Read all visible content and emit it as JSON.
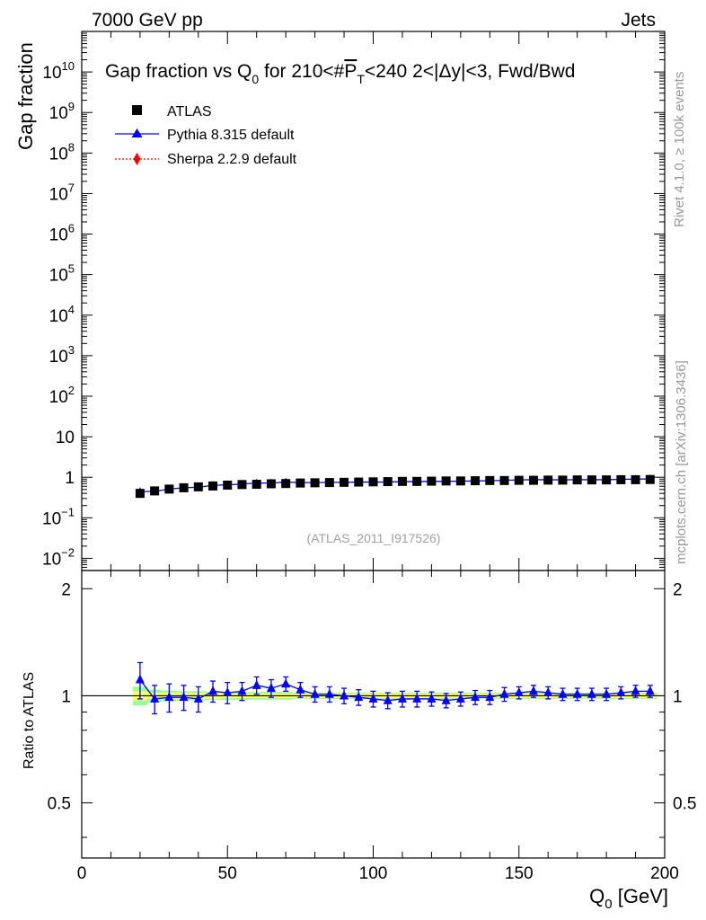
{
  "header": {
    "energy_label": "7000 GeV pp",
    "category_label": "Jets"
  },
  "side_text": {
    "rivet": "Rivet 4.1.0, ≥ 100k events",
    "source": "mcplots.cern.ch [arXiv:1306.3436]"
  },
  "colors": {
    "data": "#000000",
    "pythia": "#0000ff",
    "sherpa": "#ff0000",
    "band_inner": "#ffff66",
    "band_outer": "#99ff99"
  },
  "chart_data": [
    {
      "type": "scatter",
      "panel": "main",
      "title": "Gap fraction vs Q0 for 210<#PT<240  2<|Δy|<3, Fwd/Bwd",
      "title_parts": {
        "prefix": "Gap fraction vs Q",
        "sub": "0",
        "mid": " for 210<#",
        "overline": "P",
        "overline_sub": "T",
        "suffix": "<240  2<|Δy|<3, Fwd/Bwd"
      },
      "ylabel": "Gap fraction",
      "yscale": "log",
      "ylim": [
        0.005,
        100000000000.0
      ],
      "xlim": [
        0,
        200
      ],
      "analysis_label": "(ATLAS_2011_I917526)",
      "y_ticks": [
        {
          "value": 0.01,
          "base": "10",
          "exp": "−2"
        },
        {
          "value": 0.1,
          "base": "10",
          "exp": "−1"
        },
        {
          "value": 1,
          "base": "1",
          "exp": ""
        },
        {
          "value": 10,
          "base": "10",
          "exp": ""
        },
        {
          "value": 100,
          "base": "10",
          "exp": "2"
        },
        {
          "value": 1000,
          "base": "10",
          "exp": "3"
        },
        {
          "value": 10000,
          "base": "10",
          "exp": "4"
        },
        {
          "value": 100000,
          "base": "10",
          "exp": "5"
        },
        {
          "value": 1000000,
          "base": "10",
          "exp": "6"
        },
        {
          "value": 10000000,
          "base": "10",
          "exp": "7"
        },
        {
          "value": 100000000,
          "base": "10",
          "exp": "8"
        },
        {
          "value": 1000000000,
          "base": "10",
          "exp": "9"
        },
        {
          "value": 10000000000,
          "base": "10",
          "exp": "10"
        }
      ],
      "x": [
        20,
        25,
        30,
        35,
        40,
        45,
        50,
        55,
        60,
        65,
        70,
        75,
        80,
        85,
        90,
        95,
        100,
        105,
        110,
        115,
        120,
        125,
        130,
        135,
        140,
        145,
        150,
        155,
        160,
        165,
        170,
        175,
        180,
        185,
        190,
        195
      ],
      "legend": [
        {
          "label": "ATLAS",
          "marker": "square",
          "line": "none",
          "color": "#000000"
        },
        {
          "label": "Pythia 8.315 default",
          "marker": "triangle",
          "line": "solid",
          "color": "#0000ff"
        },
        {
          "label": "Sherpa 2.2.9 default",
          "marker": "diamond",
          "line": "dotted",
          "color": "#ff0000"
        }
      ],
      "series": [
        {
          "name": "ATLAS",
          "values": [
            0.4,
            0.46,
            0.51,
            0.55,
            0.58,
            0.61,
            0.64,
            0.66,
            0.67,
            0.69,
            0.7,
            0.72,
            0.73,
            0.74,
            0.75,
            0.76,
            0.77,
            0.78,
            0.79,
            0.79,
            0.8,
            0.81,
            0.81,
            0.82,
            0.83,
            0.83,
            0.84,
            0.84,
            0.85,
            0.85,
            0.86,
            0.86,
            0.86,
            0.87,
            0.87,
            0.88
          ]
        },
        {
          "name": "Pythia 8.315 default",
          "values": [
            0.44,
            0.45,
            0.51,
            0.55,
            0.57,
            0.63,
            0.65,
            0.68,
            0.72,
            0.72,
            0.76,
            0.74,
            0.74,
            0.75,
            0.75,
            0.76,
            0.76,
            0.76,
            0.78,
            0.78,
            0.79,
            0.79,
            0.8,
            0.81,
            0.82,
            0.84,
            0.86,
            0.87,
            0.87,
            0.86,
            0.87,
            0.87,
            0.87,
            0.89,
            0.9,
            0.91
          ]
        }
      ]
    },
    {
      "type": "line",
      "panel": "ratio",
      "ylabel": "Ratio to ATLAS",
      "xlabel": "Q0 [GeV]",
      "xlabel_parts": {
        "main": "Q",
        "sub": "0",
        "rest": " [GeV]"
      },
      "xlim": [
        0,
        200
      ],
      "ylim": [
        0.35,
        2.25
      ],
      "x_ticks": [
        0,
        50,
        100,
        150,
        200
      ],
      "y_ticks": [
        0.5,
        1,
        2
      ],
      "x": [
        20,
        25,
        30,
        35,
        40,
        45,
        50,
        55,
        60,
        65,
        70,
        75,
        80,
        85,
        90,
        95,
        100,
        105,
        110,
        115,
        120,
        125,
        130,
        135,
        140,
        145,
        150,
        155,
        160,
        165,
        170,
        175,
        180,
        185,
        190,
        195
      ],
      "band_inner_halfwidth": [
        0.03,
        0.02,
        0.02,
        0.02,
        0.02,
        0.02,
        0.015,
        0.015,
        0.015,
        0.015,
        0.015,
        0.015,
        0.015,
        0.015,
        0.015,
        0.015,
        0.015,
        0.015,
        0.015,
        0.015,
        0.015,
        0.015,
        0.015,
        0.015,
        0.015,
        0.015,
        0.015,
        0.015,
        0.015,
        0.015,
        0.015,
        0.015,
        0.015,
        0.015,
        0.015,
        0.015
      ],
      "band_outer_halfwidth": [
        0.06,
        0.04,
        0.035,
        0.03,
        0.03,
        0.025,
        0.025,
        0.025,
        0.025,
        0.025,
        0.025,
        0.02,
        0.02,
        0.02,
        0.02,
        0.02,
        0.02,
        0.02,
        0.02,
        0.02,
        0.02,
        0.02,
        0.02,
        0.02,
        0.02,
        0.02,
        0.02,
        0.02,
        0.02,
        0.02,
        0.02,
        0.02,
        0.02,
        0.02,
        0.02,
        0.02
      ],
      "series": [
        {
          "name": "Pythia 8.315 default",
          "values": [
            1.11,
            0.98,
            0.99,
            0.99,
            0.98,
            1.03,
            1.02,
            1.03,
            1.07,
            1.05,
            1.08,
            1.04,
            1.01,
            1.01,
            1.0,
            0.99,
            0.98,
            0.97,
            0.98,
            0.98,
            0.98,
            0.97,
            0.98,
            0.99,
            0.99,
            1.01,
            1.02,
            1.03,
            1.02,
            1.01,
            1.01,
            1.01,
            1.01,
            1.02,
            1.03,
            1.03
          ],
          "err": [
            0.13,
            0.09,
            0.09,
            0.08,
            0.08,
            0.07,
            0.07,
            0.06,
            0.06,
            0.06,
            0.05,
            0.05,
            0.05,
            0.05,
            0.05,
            0.05,
            0.05,
            0.05,
            0.05,
            0.05,
            0.045,
            0.045,
            0.045,
            0.045,
            0.045,
            0.045,
            0.04,
            0.04,
            0.04,
            0.04,
            0.04,
            0.04,
            0.04,
            0.04,
            0.04,
            0.04
          ]
        }
      ]
    }
  ]
}
